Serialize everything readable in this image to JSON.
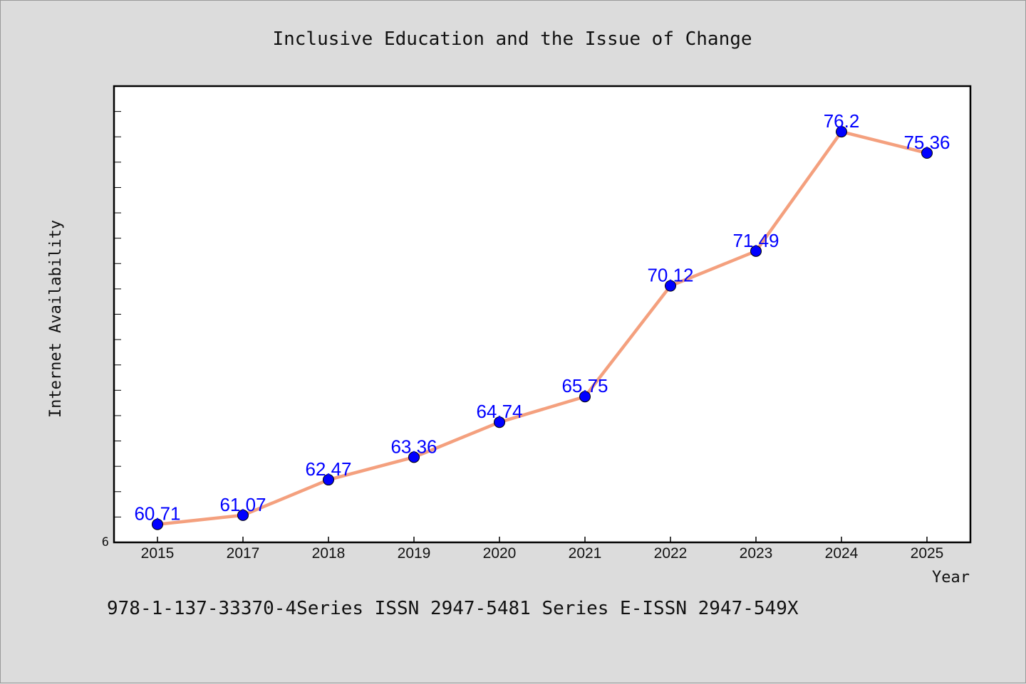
{
  "chart_data": {
    "type": "line",
    "title": "Inclusive Education and the Issue of Change",
    "xlabel": "Year",
    "ylabel": "Internet Availability",
    "categories": [
      "2015",
      "2017",
      "2018",
      "2019",
      "2020",
      "2021",
      "2022",
      "2023",
      "2024",
      "2025"
    ],
    "series": [
      {
        "values": [
          60.71,
          61.07,
          62.47,
          63.36,
          64.74,
          65.75,
          70.12,
          71.49,
          76.2,
          75.36
        ],
        "labels": [
          "60.71",
          "61.07",
          "62.47",
          "63.36",
          "64.74",
          "65.75",
          "70.12",
          "71.49",
          "76.2",
          "75.36"
        ]
      }
    ],
    "ylim": [
      60,
      78
    ],
    "y_tick_labels": [
      "6"
    ],
    "grid": false,
    "line_color": "#f4a07e",
    "marker_color": "#0000ff",
    "label_color": "#0000ff"
  },
  "footer": {
    "text": "978-1-137-33370-4Series ISSN 2947-5481 Series E-ISSN 2947-549X"
  }
}
